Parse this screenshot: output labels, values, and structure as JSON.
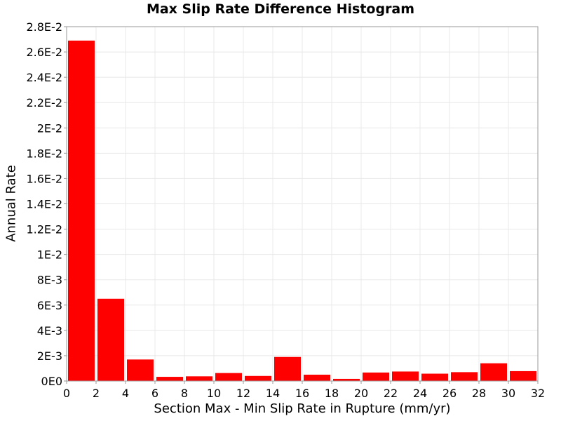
{
  "chart_data": {
    "type": "bar",
    "title": "Max Slip Rate Difference Histogram",
    "xlabel": "Section Max - Min Slip Rate in Rupture (mm/yr)",
    "ylabel": "Annual Rate",
    "xlim": [
      0,
      32
    ],
    "ylim": [
      0,
      0.028
    ],
    "bin_width": 2,
    "bar_color": "#ff0000",
    "grid_color": "#e8e8e8",
    "grid": true,
    "x_ticks": [
      0,
      2,
      4,
      6,
      8,
      10,
      12,
      14,
      16,
      18,
      20,
      22,
      24,
      26,
      28,
      30,
      32
    ],
    "x_tick_labels": [
      "0",
      "2",
      "4",
      "6",
      "8",
      "10",
      "12",
      "14",
      "16",
      "18",
      "20",
      "22",
      "24",
      "26",
      "28",
      "30",
      "32"
    ],
    "y_ticks": [
      0,
      0.002,
      0.004,
      0.006,
      0.008,
      0.01,
      0.012,
      0.014,
      0.016,
      0.018,
      0.02,
      0.022,
      0.024,
      0.026,
      0.028
    ],
    "y_tick_labels": [
      "0E0",
      "2E-3",
      "4E-3",
      "6E-3",
      "8E-3",
      "1E-2",
      "1.2E-2",
      "1.4E-2",
      "1.6E-2",
      "1.8E-2",
      "2E-2",
      "2.2E-2",
      "2.4E-2",
      "2.6E-2",
      "2.8E-2"
    ],
    "bins": [
      {
        "x": 1,
        "value": 0.0269
      },
      {
        "x": 3,
        "value": 0.0065
      },
      {
        "x": 5,
        "value": 0.0017
      },
      {
        "x": 7,
        "value": 0.00033
      },
      {
        "x": 9,
        "value": 0.00037
      },
      {
        "x": 11,
        "value": 0.00063
      },
      {
        "x": 13,
        "value": 0.0004
      },
      {
        "x": 15,
        "value": 0.0019
      },
      {
        "x": 17,
        "value": 0.0005
      },
      {
        "x": 19,
        "value": 0.00017
      },
      {
        "x": 21,
        "value": 0.00067
      },
      {
        "x": 23,
        "value": 0.00075
      },
      {
        "x": 25,
        "value": 0.00058
      },
      {
        "x": 27,
        "value": 0.0007
      },
      {
        "x": 29,
        "value": 0.0014
      },
      {
        "x": 31,
        "value": 0.00078
      }
    ]
  }
}
